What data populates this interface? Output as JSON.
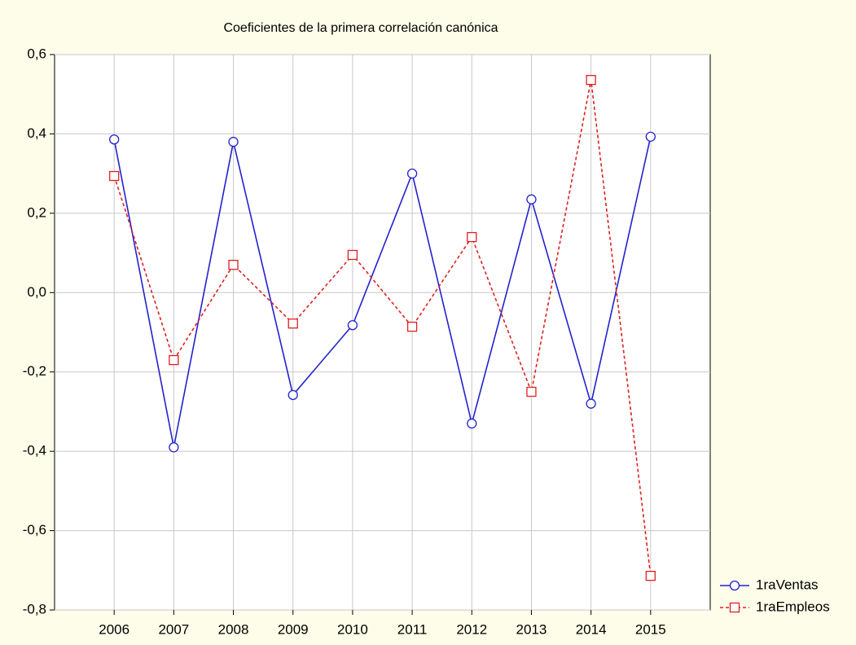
{
  "chart_data": {
    "type": "line",
    "title": "Coeficientes de la primera correlación canónica",
    "categories": [
      "2006",
      "2007",
      "2008",
      "2009",
      "2010",
      "2011",
      "2012",
      "2013",
      "2014",
      "2015"
    ],
    "series": [
      {
        "name": "1raVentas",
        "color": "#2222cc",
        "marker": "circle",
        "linestyle": "solid",
        "values": [
          0.386,
          -0.39,
          0.38,
          -0.258,
          -0.082,
          0.3,
          -0.33,
          0.235,
          -0.28,
          0.393
        ]
      },
      {
        "name": "1raEmpleos",
        "color": "#e02020",
        "marker": "square",
        "linestyle": "dashed",
        "values": [
          0.294,
          -0.17,
          0.07,
          -0.078,
          0.095,
          -0.086,
          0.14,
          -0.25,
          0.536,
          -0.714
        ]
      }
    ],
    "ylim": [
      -0.8,
      0.6
    ],
    "yticks": [
      {
        "value": -0.8,
        "label": "-0,8"
      },
      {
        "value": -0.6,
        "label": "-0,6"
      },
      {
        "value": -0.4,
        "label": "-0,4"
      },
      {
        "value": -0.2,
        "label": "-0,2"
      },
      {
        "value": 0,
        "label": "0,0"
      },
      {
        "value": 0.2,
        "label": "0,2"
      },
      {
        "value": 0.4,
        "label": "0,4"
      },
      {
        "value": 0.6,
        "label": "0,6"
      }
    ],
    "grid": true
  }
}
